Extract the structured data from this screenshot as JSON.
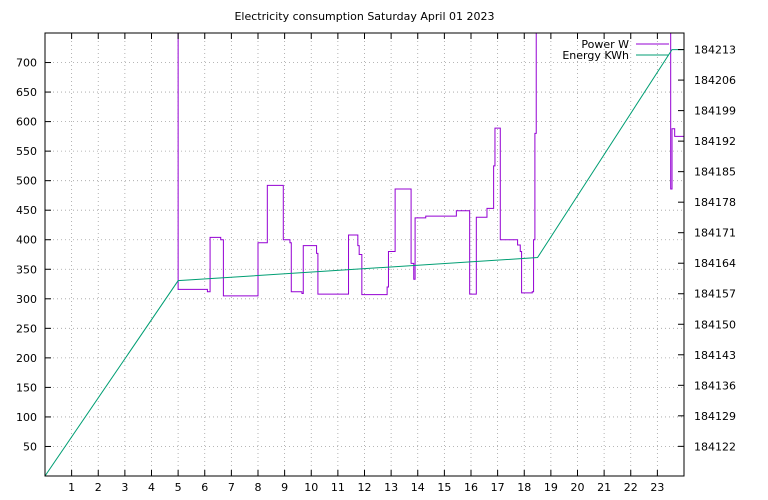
{
  "chart_data": {
    "type": "line",
    "title": "Electricity consumption Saturday April 01 2023",
    "xlabel": "",
    "ylabel": "",
    "y2label": "",
    "grid": true,
    "legend_position": "top-right",
    "xlim": [
      0,
      24
    ],
    "ylim": [
      0,
      750
    ],
    "y2lim": [
      184115.2,
      184216.8
    ],
    "x_ticks": [
      1,
      2,
      3,
      4,
      5,
      6,
      7,
      8,
      9,
      10,
      11,
      12,
      13,
      14,
      15,
      16,
      17,
      18,
      19,
      20,
      21,
      22,
      23
    ],
    "y_ticks": [
      50,
      100,
      150,
      200,
      250,
      300,
      350,
      400,
      450,
      500,
      550,
      600,
      650,
      700
    ],
    "y2_ticks": [
      184122,
      184129,
      184136,
      184143,
      184150,
      184157,
      184164,
      184171,
      184178,
      184185,
      184192,
      184199,
      184206,
      184213
    ],
    "series": [
      {
        "name": "Power W",
        "axis": "y1",
        "color": "#9400d3",
        "step": true,
        "points": [
          [
            4.98,
            750
          ],
          [
            5.0,
            316
          ],
          [
            6.1,
            312
          ],
          [
            6.2,
            404
          ],
          [
            6.6,
            400
          ],
          [
            6.7,
            305
          ],
          [
            7.9,
            305
          ],
          [
            8.0,
            395
          ],
          [
            8.3,
            395
          ],
          [
            8.35,
            492
          ],
          [
            8.9,
            492
          ],
          [
            8.95,
            400
          ],
          [
            9.2,
            395
          ],
          [
            9.25,
            312
          ],
          [
            9.6,
            312
          ],
          [
            9.65,
            309
          ],
          [
            9.7,
            390
          ],
          [
            10.15,
            390
          ],
          [
            10.2,
            377
          ],
          [
            10.25,
            308
          ],
          [
            11.35,
            308
          ],
          [
            11.4,
            408
          ],
          [
            11.7,
            408
          ],
          [
            11.75,
            390
          ],
          [
            11.8,
            375
          ],
          [
            11.9,
            307
          ],
          [
            12.8,
            307
          ],
          [
            12.85,
            320
          ],
          [
            12.9,
            380
          ],
          [
            13.1,
            380
          ],
          [
            13.15,
            486
          ],
          [
            13.7,
            486
          ],
          [
            13.75,
            360
          ],
          [
            13.85,
            333
          ],
          [
            13.9,
            437
          ],
          [
            14.3,
            440
          ],
          [
            15.4,
            440
          ],
          [
            15.45,
            449
          ],
          [
            15.9,
            449
          ],
          [
            15.95,
            308
          ],
          [
            16.15,
            308
          ],
          [
            16.2,
            438
          ],
          [
            16.55,
            438
          ],
          [
            16.6,
            453
          ],
          [
            16.8,
            453
          ],
          [
            16.85,
            525
          ],
          [
            16.9,
            589
          ],
          [
            17.05,
            589
          ],
          [
            17.1,
            400
          ],
          [
            17.7,
            400
          ],
          [
            17.75,
            391
          ],
          [
            17.85,
            380
          ],
          [
            17.9,
            310
          ],
          [
            18.3,
            312
          ],
          [
            18.35,
            400
          ],
          [
            18.4,
            580
          ],
          [
            18.45,
            750
          ],
          [
            23.45,
            750
          ],
          [
            23.5,
            486
          ],
          [
            23.55,
            588
          ],
          [
            23.65,
            575
          ],
          [
            23.95,
            575
          ],
          [
            24.0,
            720
          ]
        ]
      },
      {
        "name": "Energy KWh",
        "axis": "y2",
        "color": "#009e73",
        "step": false,
        "points": [
          [
            0.0,
            184115.2
          ],
          [
            5.0,
            184160.0
          ],
          [
            18.5,
            184165.3
          ],
          [
            23.55,
            184213.0
          ],
          [
            24.0,
            184213.0
          ]
        ]
      }
    ]
  }
}
